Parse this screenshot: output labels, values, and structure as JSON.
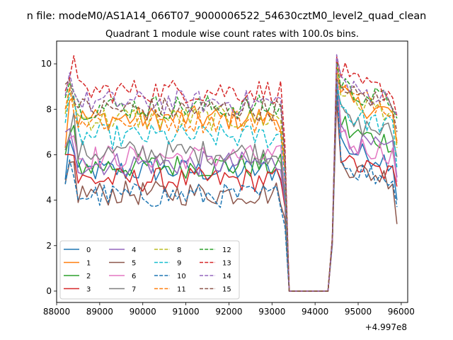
{
  "suptitle": "n file: modeM0/AS1A14_066T07_9000006522_54630cztM0_level2_quad_clean",
  "chart_data": {
    "type": "line",
    "title": "Quadrant 1 module wise count rates with 100.0s bins.",
    "xlabel": "",
    "ylabel": "",
    "x_offset_label": "+4.997e8",
    "xlim": [
      88000,
      96150
    ],
    "ylim": [
      -0.5,
      11.0
    ],
    "xticks": [
      88000,
      89000,
      90000,
      91000,
      92000,
      93000,
      94000,
      95000,
      96000
    ],
    "xtick_labels": [
      "88000",
      "89000",
      "90000",
      "91000",
      "92000",
      "93000",
      "94000",
      "95000",
      "96000"
    ],
    "yticks": [
      0,
      2,
      4,
      6,
      8,
      10
    ],
    "ytick_labels": [
      "0",
      "2",
      "4",
      "6",
      "8",
      "10"
    ],
    "x_start": 88200,
    "x_step": 100,
    "gap": {
      "zero_from": 93400,
      "zero_to": 94300,
      "resume": 94400
    },
    "legend_position": "lower-left",
    "series": [
      {
        "name": "0",
        "color": "#1f77b4",
        "dashed": false,
        "level": 5.3,
        "start": 4.9,
        "peak": 9.5,
        "after": 6.2,
        "end": 4.0
      },
      {
        "name": "1",
        "color": "#ff7f0e",
        "dashed": false,
        "level": 7.6,
        "start": 6.3,
        "peak": 9.0,
        "after": 8.3,
        "end": 6.5
      },
      {
        "name": "2",
        "color": "#2ca02c",
        "dashed": false,
        "level": 5.5,
        "start": 6.0,
        "peak": 9.6,
        "after": 7.0,
        "end": 5.0
      },
      {
        "name": "3",
        "color": "#d62728",
        "dashed": false,
        "level": 4.9,
        "start": 6.0,
        "peak": 8.4,
        "after": 5.6,
        "end": 4.6
      },
      {
        "name": "4",
        "color": "#9467bd",
        "dashed": false,
        "level": 5.6,
        "start": 7.0,
        "peak": 9.5,
        "after": 6.6,
        "end": 5.0
      },
      {
        "name": "5",
        "color": "#8c564b",
        "dashed": false,
        "level": 4.3,
        "start": 4.75,
        "peak": 8.7,
        "after": 5.4,
        "end": 2.95
      },
      {
        "name": "6",
        "color": "#e377c2",
        "dashed": false,
        "level": 5.9,
        "start": 6.4,
        "peak": 10.2,
        "after": 6.5,
        "end": 4.8
      },
      {
        "name": "7",
        "color": "#7f7f7f",
        "dashed": false,
        "level": 6.1,
        "start": 6.2,
        "peak": 8.9,
        "after": 7.4,
        "end": 5.9
      },
      {
        "name": "8",
        "color": "#bcbd22",
        "dashed": true,
        "level": 7.6,
        "start": 7.8,
        "peak": 9.6,
        "after": 8.4,
        "end": 6.3
      },
      {
        "name": "9",
        "color": "#17becf",
        "dashed": true,
        "level": 6.8,
        "start": 7.4,
        "peak": 9.2,
        "after": 7.7,
        "end": 5.4
      },
      {
        "name": "10",
        "color": "#1f77b4",
        "dashed": true,
        "level": 4.2,
        "start": 4.7,
        "peak": 9.0,
        "after": 5.4,
        "end": 3.7
      },
      {
        "name": "11",
        "color": "#ff7f0e",
        "dashed": true,
        "level": 7.5,
        "start": 8.0,
        "peak": 10.0,
        "after": 8.6,
        "end": 6.6
      },
      {
        "name": "12",
        "color": "#2ca02c",
        "dashed": true,
        "level": 8.1,
        "start": 8.5,
        "peak": 10.1,
        "after": 8.8,
        "end": 7.6
      },
      {
        "name": "13",
        "color": "#d62728",
        "dashed": true,
        "level": 8.8,
        "start": 8.8,
        "peak": 10.3,
        "after": 9.2,
        "end": 7.7
      },
      {
        "name": "14",
        "color": "#9467bd",
        "dashed": true,
        "level": 8.3,
        "start": 8.6,
        "peak": 10.4,
        "after": 8.9,
        "end": 7.8
      },
      {
        "name": "15",
        "color": "#8c564b",
        "dashed": true,
        "level": 8.0,
        "start": 9.1,
        "peak": 9.3,
        "after": 8.7,
        "end": 7.0
      }
    ]
  }
}
